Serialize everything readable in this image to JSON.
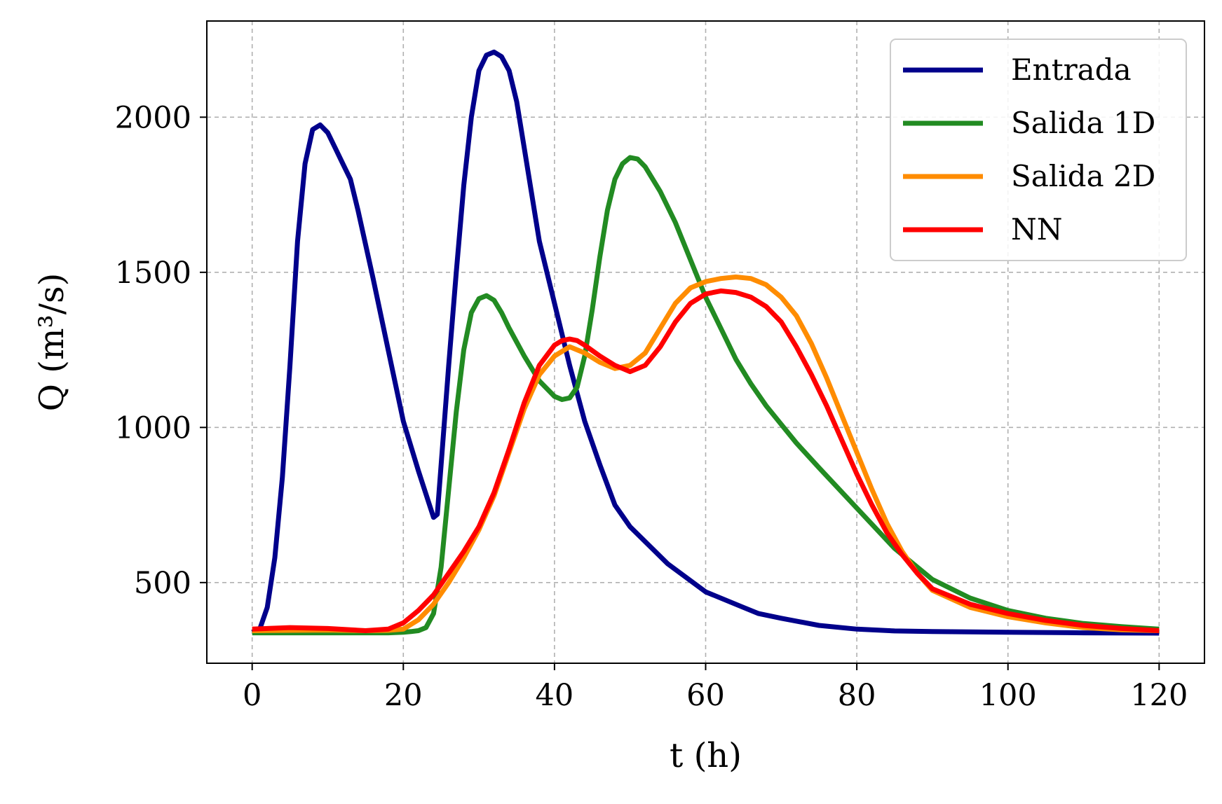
{
  "chart_data": {
    "type": "line",
    "title": "",
    "xlabel": "t (h)",
    "ylabel": "Q (m³/s)",
    "xlim": [
      -6,
      126
    ],
    "ylim": [
      240,
      2310
    ],
    "x_ticks": [
      0,
      20,
      40,
      60,
      80,
      100,
      120
    ],
    "y_ticks": [
      500,
      1000,
      1500,
      2000
    ],
    "grid": true,
    "legend_position": "top-right",
    "series": [
      {
        "name": "Entrada",
        "color": "#00008b",
        "x": [
          0,
          1,
          2,
          3,
          4,
          5,
          6,
          7,
          8,
          9,
          10,
          11,
          12,
          13,
          14,
          16,
          18,
          20,
          22,
          24,
          24.5,
          25,
          26,
          27,
          28,
          29,
          30,
          31,
          32,
          33,
          34,
          35,
          36,
          38,
          40,
          42,
          44,
          46,
          48,
          50,
          55,
          60,
          65,
          67,
          70,
          75,
          80,
          85,
          90,
          100,
          110,
          120
        ],
        "y": [
          340,
          350,
          420,
          580,
          840,
          1200,
          1600,
          1850,
          1960,
          1975,
          1950,
          1900,
          1850,
          1800,
          1700,
          1480,
          1250,
          1020,
          860,
          710,
          720,
          880,
          1200,
          1500,
          1780,
          2000,
          2150,
          2200,
          2210,
          2195,
          2150,
          2050,
          1900,
          1600,
          1400,
          1200,
          1020,
          880,
          750,
          680,
          560,
          470,
          420,
          400,
          385,
          362,
          350,
          344,
          342,
          340,
          338,
          337
        ]
      },
      {
        "name": "Salida 1D",
        "color": "#228b22",
        "x": [
          0,
          10,
          18,
          20,
          21,
          22,
          23,
          24,
          25,
          26,
          27,
          28,
          29,
          30,
          31,
          32,
          33,
          34,
          36,
          38,
          40,
          41,
          42,
          43,
          44,
          45,
          46,
          47,
          48,
          49,
          50,
          51,
          52,
          54,
          56,
          58,
          60,
          62,
          64,
          66,
          68,
          70,
          72,
          75,
          80,
          85,
          90,
          95,
          100,
          105,
          110,
          115,
          120
        ],
        "y": [
          338,
          338,
          338,
          340,
          342,
          345,
          355,
          400,
          550,
          800,
          1050,
          1250,
          1370,
          1415,
          1425,
          1410,
          1370,
          1320,
          1230,
          1150,
          1100,
          1090,
          1095,
          1130,
          1230,
          1380,
          1550,
          1700,
          1800,
          1850,
          1870,
          1865,
          1840,
          1760,
          1660,
          1540,
          1420,
          1320,
          1220,
          1140,
          1070,
          1010,
          950,
          870,
          740,
          610,
          510,
          450,
          410,
          385,
          368,
          358,
          350
        ]
      },
      {
        "name": "Salida 2D",
        "color": "#ff8c00",
        "x": [
          0,
          5,
          10,
          15,
          18,
          20,
          22,
          24,
          26,
          28,
          30,
          32,
          34,
          36,
          38,
          40,
          42,
          44,
          46,
          48,
          50,
          52,
          54,
          56,
          58,
          60,
          62,
          64,
          66,
          68,
          70,
          72,
          74,
          76,
          78,
          80,
          82,
          84,
          86,
          88,
          90,
          95,
          100,
          105,
          110,
          115,
          120
        ],
        "y": [
          345,
          346,
          347,
          345,
          346,
          350,
          380,
          430,
          500,
          580,
          670,
          780,
          920,
          1060,
          1170,
          1230,
          1260,
          1240,
          1210,
          1190,
          1200,
          1240,
          1320,
          1400,
          1450,
          1470,
          1480,
          1485,
          1480,
          1460,
          1420,
          1360,
          1270,
          1160,
          1040,
          920,
          800,
          690,
          600,
          530,
          475,
          420,
          390,
          370,
          355,
          348,
          345
        ]
      },
      {
        "name": "NN",
        "color": "#ff0000",
        "x": [
          0,
          5,
          10,
          15,
          18,
          20,
          22,
          24,
          26,
          28,
          30,
          32,
          34,
          36,
          38,
          40,
          41,
          42,
          43,
          44,
          46,
          48,
          50,
          52,
          54,
          56,
          58,
          60,
          62,
          64,
          66,
          68,
          70,
          72,
          74,
          76,
          78,
          80,
          82,
          84,
          86,
          88,
          90,
          95,
          100,
          105,
          110,
          115,
          120
        ],
        "y": [
          350,
          355,
          352,
          345,
          350,
          370,
          410,
          460,
          530,
          600,
          680,
          790,
          930,
          1080,
          1200,
          1265,
          1280,
          1285,
          1280,
          1265,
          1230,
          1200,
          1180,
          1200,
          1260,
          1340,
          1400,
          1430,
          1440,
          1435,
          1420,
          1390,
          1340,
          1260,
          1170,
          1070,
          960,
          850,
          750,
          660,
          590,
          530,
          480,
          430,
          400,
          378,
          362,
          352,
          345
        ]
      }
    ]
  }
}
